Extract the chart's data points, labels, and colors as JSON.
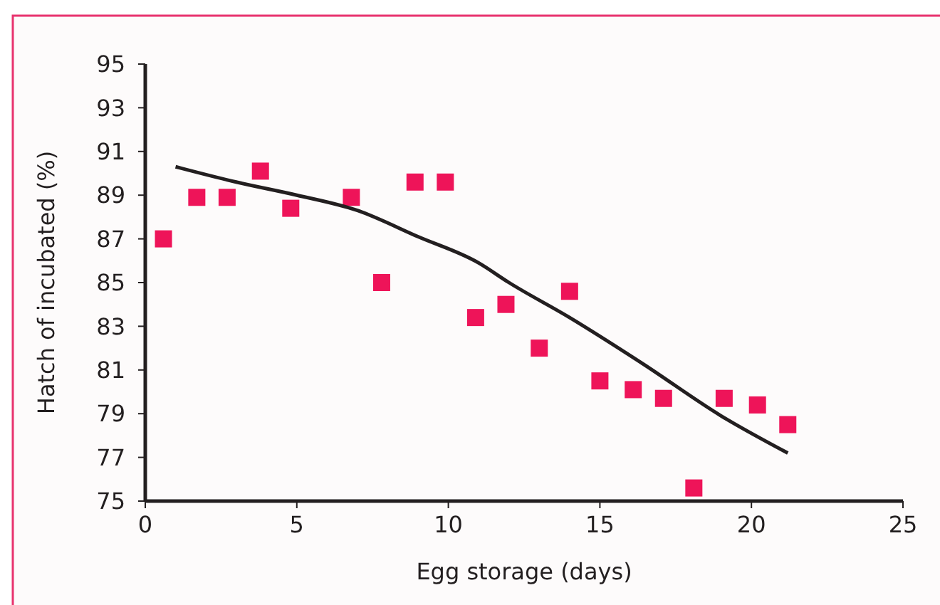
{
  "chart_data": {
    "type": "scatter",
    "xlabel": "Egg storage (days)",
    "ylabel": "Hatch of incubated (%)",
    "xlim": [
      0,
      25
    ],
    "xticks": [
      0,
      5,
      10,
      15,
      20,
      25
    ],
    "ylim": [
      75,
      95
    ],
    "yticks": [
      75,
      77,
      79,
      81,
      83,
      85,
      87,
      89,
      91,
      93,
      95
    ],
    "grid": false,
    "series": [
      {
        "color": "#ee1459",
        "marker": "square",
        "x": [
          0.6,
          1.7,
          2.7,
          3.8,
          4.8,
          6.8,
          7.8,
          8.9,
          9.9,
          10.9,
          11.9,
          13,
          14,
          15,
          16.1,
          17.1,
          18.1,
          19.1,
          20.2,
          21.2
        ],
        "values": [
          87,
          88.9,
          88.9,
          90.1,
          88.4,
          88.9,
          85,
          89.6,
          89.6,
          83.4,
          84,
          82,
          84.6,
          80.5,
          80.1,
          79.7,
          75.6,
          79.7,
          79.4,
          78.5
        ]
      },
      {
        "type": "line",
        "color": "#231f20",
        "marker": "none",
        "line_style": "solid",
        "x": [
          1,
          3,
          5,
          7,
          9,
          11,
          12,
          14,
          16.4,
          19,
          21.2
        ],
        "values": [
          90.3,
          89.6,
          89.0,
          88.3,
          87.1,
          85.9,
          85.0,
          83.4,
          81.3,
          78.9,
          77.2
        ]
      }
    ]
  }
}
